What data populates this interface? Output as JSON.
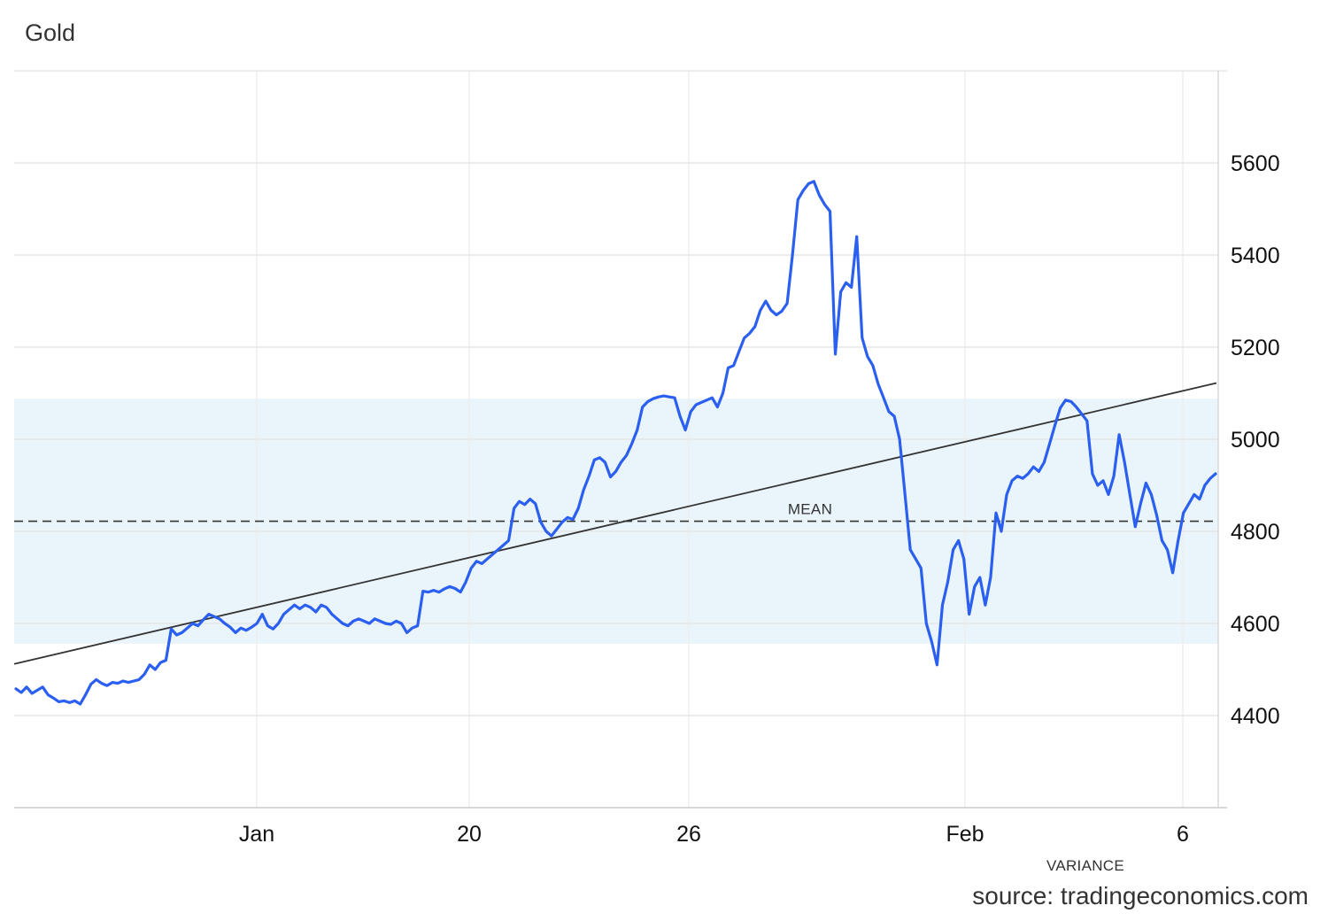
{
  "title": "Gold",
  "source": "source: tradingeconomics.com",
  "chart_data": {
    "type": "line",
    "title": "Gold",
    "xlabel": "",
    "ylabel": "",
    "ylim": [
      4200,
      5800
    ],
    "x_tick_labels": [
      "Jan",
      "20",
      "26",
      "Feb",
      "6"
    ],
    "y_ticks": [
      4400,
      4600,
      4800,
      5000,
      5200,
      5400,
      5600
    ],
    "mean": 4822,
    "mean_label": "MEAN",
    "variance_band": [
      4556,
      5088
    ],
    "variance_label": "VARIANCE",
    "trend_line": {
      "start": 4512,
      "end": 5122
    },
    "grid": true,
    "colors": {
      "series": "#2a5ff0",
      "band": "#eaf4fb",
      "trend": "#333333",
      "grid": "#e6e6e6"
    },
    "series": [
      {
        "values": [
          4458,
          4450,
          4462,
          4448,
          4455,
          4462,
          4445,
          4438,
          4430,
          4432,
          4428,
          4432,
          4425,
          4445,
          4468,
          4478,
          4470,
          4465,
          4472,
          4470,
          4475,
          4472,
          4475,
          4478,
          4490,
          4510,
          4500,
          4515,
          4520,
          4588,
          4575,
          4580,
          4590,
          4600,
          4595,
          4608,
          4620,
          4615,
          4610,
          4600,
          4592,
          4580,
          4590,
          4585,
          4592,
          4600,
          4620,
          4595,
          4588,
          4600,
          4620,
          4630,
          4640,
          4632,
          4640,
          4635,
          4625,
          4640,
          4635,
          4620,
          4610,
          4600,
          4595,
          4605,
          4610,
          4605,
          4600,
          4610,
          4605,
          4600,
          4598,
          4605,
          4600,
          4580,
          4590,
          4595,
          4670,
          4668,
          4672,
          4668,
          4675,
          4680,
          4676,
          4668,
          4690,
          4720,
          4735,
          4730,
          4740,
          4750,
          4760,
          4770,
          4780,
          4850,
          4865,
          4858,
          4870,
          4860,
          4820,
          4800,
          4790,
          4805,
          4820,
          4830,
          4826,
          4850,
          4890,
          4920,
          4955,
          4960,
          4950,
          4918,
          4930,
          4950,
          4965,
          4990,
          5020,
          5070,
          5082,
          5088,
          5092,
          5094,
          5092,
          5090,
          5050,
          5020,
          5060,
          5075,
          5080,
          5085,
          5090,
          5070,
          5100,
          5155,
          5160,
          5190,
          5220,
          5230,
          5245,
          5280,
          5300,
          5280,
          5270,
          5278,
          5295,
          5400,
          5520,
          5540,
          5555,
          5560,
          5530,
          5510,
          5495,
          5185,
          5320,
          5340,
          5330,
          5440,
          5220,
          5180,
          5160,
          5120,
          5090,
          5060,
          5050,
          5000,
          4880,
          4760,
          4740,
          4720,
          4600,
          4560,
          4510,
          4640,
          4690,
          4760,
          4780,
          4740,
          4620,
          4680,
          4700,
          4640,
          4700,
          4840,
          4800,
          4880,
          4910,
          4920,
          4915,
          4925,
          4940,
          4930,
          4950,
          4990,
          5030,
          5068,
          5085,
          5082,
          5070,
          5055,
          5040,
          4925,
          4900,
          4910,
          4880,
          4920,
          5010,
          4950,
          4880,
          4810,
          4860,
          4905,
          4880,
          4835,
          4780,
          4760,
          4710,
          4780,
          4840,
          4860,
          4880,
          4870,
          4900,
          4915,
          4925
        ]
      }
    ]
  }
}
